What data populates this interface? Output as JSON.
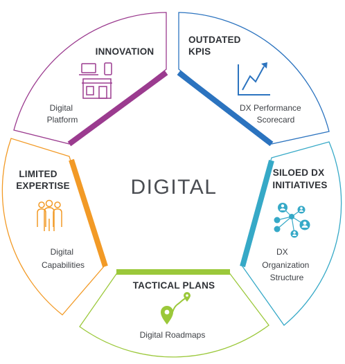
{
  "center_label": "DIGITAL",
  "segments": [
    {
      "id": "innovation",
      "color": "#9b3b8f",
      "heading": [
        "INNOVATION"
      ],
      "subtext": [
        "Digital",
        "Platform"
      ],
      "icon": "devices-store-icon"
    },
    {
      "id": "outdated-kpis",
      "color": "#2b73bf",
      "heading": [
        "OUTDATED",
        "KPIS"
      ],
      "subtext": [
        "DX Performance",
        "Scorecard"
      ],
      "icon": "trend-chart-icon"
    },
    {
      "id": "siloed-dx",
      "color": "#36a9c7",
      "heading": [
        "SILOED DX",
        "INITIATIVES"
      ],
      "subtext": [
        "DX",
        "Organization",
        "Structure"
      ],
      "icon": "people-network-icon"
    },
    {
      "id": "tactical-plans",
      "color": "#9bc83a",
      "heading": [
        "TACTICAL PLANS"
      ],
      "subtext": [
        "Digital Roadmaps"
      ],
      "icon": "route-pin-icon"
    },
    {
      "id": "limited-expertise",
      "color": "#f29a26",
      "heading": [
        "LIMITED",
        "EXPERTISE"
      ],
      "subtext": [
        "Digital",
        "Capabilities"
      ],
      "icon": "people-group-icon"
    }
  ]
}
